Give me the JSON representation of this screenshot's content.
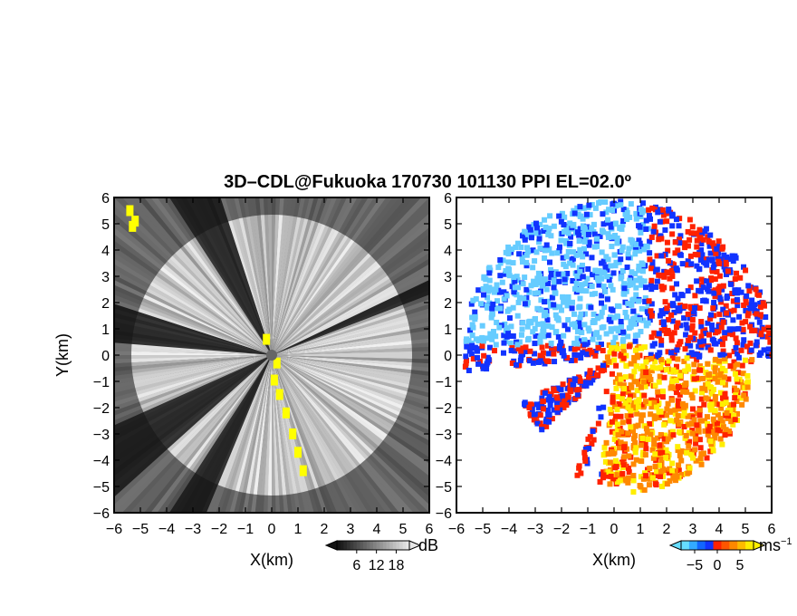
{
  "figure": {
    "title": "3D–CDL@Fukuoka 170730 101130 PPI EL=02.0º"
  },
  "chart_data": [
    {
      "type": "heatmap",
      "name": "snr-ppi",
      "xlabel": "X(km)",
      "ylabel": "Y(km)",
      "xlim": [
        -6,
        6
      ],
      "ylim": [
        -6,
        6
      ],
      "x_ticks": [
        "−6",
        "−5",
        "−4",
        "−3",
        "−2",
        "−1",
        "0",
        "1",
        "2",
        "3",
        "4",
        "5",
        "6"
      ],
      "y_ticks": [
        "6",
        "5",
        "4",
        "3",
        "2",
        "1",
        "0",
        "−1",
        "−2",
        "−3",
        "−4",
        "−5",
        "−6"
      ],
      "colorbar": {
        "unit": "dB",
        "ticks": [
          "6",
          "12",
          "18"
        ],
        "range": [
          0,
          22
        ]
      },
      "blocked_sectors_deg": [
        [
          108,
          122
        ],
        [
          162,
          174
        ],
        [
          203,
          221
        ],
        [
          237,
          247
        ],
        [
          20,
          24
        ]
      ],
      "highlight_color": "#ffff00"
    },
    {
      "type": "heatmap",
      "name": "doppler-ppi",
      "xlabel": "X(km)",
      "xlim": [
        -6,
        6
      ],
      "ylim": [
        -6,
        6
      ],
      "x_ticks": [
        "−6",
        "−5",
        "−4",
        "−3",
        "−2",
        "−1",
        "0",
        "1",
        "2",
        "3",
        "4",
        "5",
        "6"
      ],
      "y_ticks": [
        "6",
        "5",
        "4",
        "3",
        "2",
        "1",
        "0",
        "−1",
        "−2",
        "−3",
        "−4",
        "−5",
        "−6"
      ],
      "colorbar": {
        "unit": "ms",
        "unit_exp": "−1",
        "ticks": [
          "−5",
          "0",
          "5"
        ],
        "range": [
          -8,
          8
        ]
      },
      "colors": {
        "light_blue": "#66ccff",
        "blue": "#1133ff",
        "red": "#ff2200",
        "orange": "#ff8800",
        "yellow": "#ffee00"
      }
    }
  ]
}
